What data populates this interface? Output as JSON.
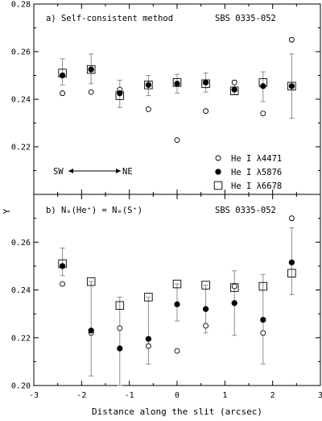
{
  "chart_data": [
    {
      "type": "scatter",
      "panel_label": "a) Self-consistent method",
      "object": "SBS 0335-052",
      "xlabel": "Distance along the slit (arcsec)",
      "ylabel": "Y",
      "xlim": [
        -3,
        3
      ],
      "ylim": [
        0.2,
        0.28
      ],
      "x_ticks": [
        -3,
        -2,
        -1,
        0,
        1,
        2,
        3
      ],
      "y_ticks": [
        0.22,
        0.24,
        0.26,
        0.28
      ],
      "y_tick_labels": [
        "0.22",
        "0.24",
        "0.26",
        "0.28"
      ],
      "legend": {
        "position": "bottom-right"
      },
      "direction": {
        "left": "SW",
        "right": "NE"
      },
      "series": [
        {
          "name": "He I λ4471",
          "marker": "open-circle",
          "x": [
            -2.4,
            -1.8,
            -1.2,
            -0.6,
            0.0,
            0.6,
            1.2,
            1.8,
            2.4
          ],
          "y": [
            0.2425,
            0.243,
            0.244,
            0.2358,
            0.2228,
            0.235,
            0.247,
            0.234,
            0.265
          ]
        },
        {
          "name": "He I λ5876",
          "marker": "filled-circle",
          "x": [
            -2.4,
            -1.8,
            -1.2,
            -0.6,
            0.0,
            0.6,
            1.2,
            1.8,
            2.4
          ],
          "y": [
            0.25,
            0.2525,
            0.2425,
            0.246,
            0.2465,
            0.247,
            0.244,
            0.2455,
            0.2455
          ]
        },
        {
          "name": "He I λ6678",
          "marker": "open-square",
          "x": [
            -2.4,
            -1.8,
            -1.2,
            -0.6,
            0.0,
            0.6,
            1.2,
            1.8,
            2.4
          ],
          "y": [
            0.251,
            0.2525,
            0.2415,
            0.246,
            0.247,
            0.2465,
            0.2435,
            0.247,
            0.2455
          ]
        }
      ],
      "error_bars": {
        "x": [
          -2.4,
          -1.8,
          -1.2,
          -0.6,
          0.0,
          0.6,
          1.2,
          1.8,
          2.4
        ],
        "low": [
          0.246,
          0.2465,
          0.2365,
          0.2415,
          0.2425,
          0.243,
          0.242,
          0.239,
          0.232
        ],
        "high": [
          0.257,
          0.259,
          0.248,
          0.25,
          0.2505,
          0.251,
          0.248,
          0.2515,
          0.259
        ]
      }
    },
    {
      "type": "scatter",
      "panel_label": "b) Nₑ(He⁺) = Nₑ(S⁺)",
      "object": "SBS 0335-052",
      "xlabel": "Distance along the slit (arcsec)",
      "ylabel": "Y",
      "xlim": [
        -3,
        3
      ],
      "ylim": [
        0.2,
        0.28
      ],
      "x_ticks": [
        -3,
        -2,
        -1,
        0,
        1,
        2,
        3
      ],
      "y_ticks": [
        0.2,
        0.22,
        0.24,
        0.26
      ],
      "y_tick_labels": [
        "0.20",
        "0.22",
        "0.24",
        "0.26"
      ],
      "series": [
        {
          "name": "He I λ4471",
          "marker": "open-circle",
          "x": [
            -2.4,
            -1.8,
            -1.2,
            -0.6,
            0.0,
            0.6,
            1.2,
            1.8,
            2.4
          ],
          "y": [
            0.2425,
            0.222,
            0.224,
            0.2165,
            0.2145,
            0.225,
            0.2415,
            0.222,
            0.27
          ]
        },
        {
          "name": "He I λ5876",
          "marker": "filled-circle",
          "x": [
            -2.4,
            -1.8,
            -1.2,
            -0.6,
            0.0,
            0.6,
            1.2,
            1.8,
            2.4
          ],
          "y": [
            0.25,
            0.223,
            0.2155,
            0.2195,
            0.234,
            0.232,
            0.2345,
            0.2275,
            0.2515
          ]
        },
        {
          "name": "He I λ6678",
          "marker": "open-square",
          "x": [
            -2.4,
            -1.8,
            -1.2,
            -0.6,
            0.0,
            0.6,
            1.2,
            1.8,
            2.4
          ],
          "y": [
            0.251,
            0.2435,
            0.2335,
            0.237,
            0.2425,
            0.242,
            0.241,
            0.2415,
            0.247
          ]
        }
      ],
      "error_bars": {
        "x": [
          -2.4,
          -1.8,
          -1.2,
          -0.6,
          0.0,
          0.6,
          1.2,
          1.8,
          2.4
        ],
        "low": [
          0.246,
          0.204,
          0.2,
          0.209,
          0.227,
          0.222,
          0.221,
          0.209,
          0.238
        ],
        "high": [
          0.2575,
          0.2435,
          0.237,
          0.237,
          0.2425,
          0.242,
          0.248,
          0.2465,
          0.266
        ]
      }
    }
  ]
}
